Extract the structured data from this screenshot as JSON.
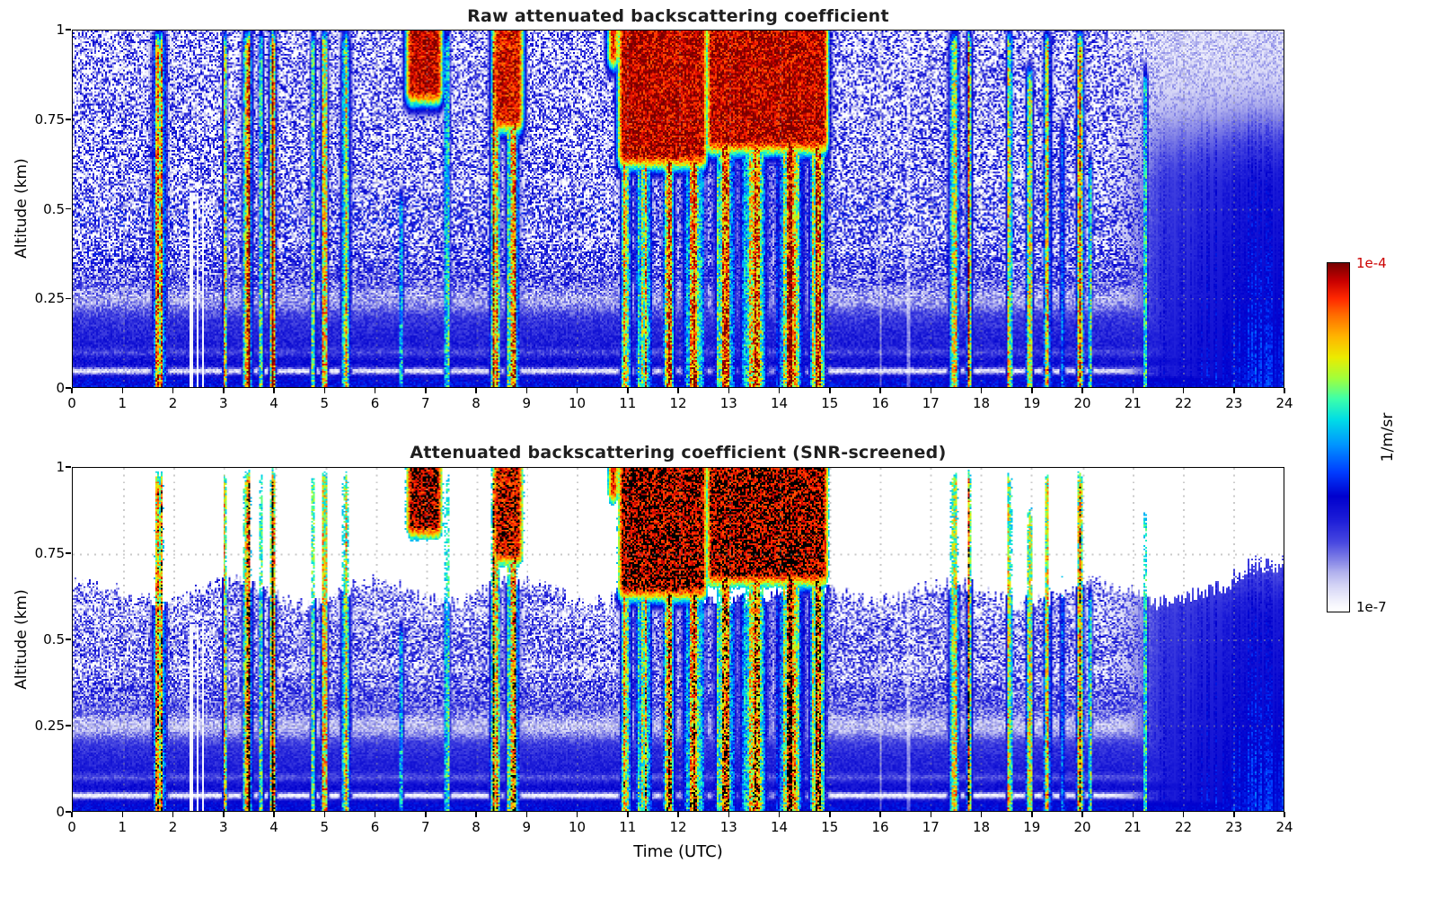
{
  "figure": {
    "background": "#ffffff"
  },
  "colorbar": {
    "top_label": "1e-4",
    "bottom_label": "1e-7",
    "units_label": "1/m/sr",
    "top_label_color": "#cc0000",
    "bottom_label_color": "#000000",
    "stops": [
      [
        0.0,
        255,
        255,
        255
      ],
      [
        0.03,
        240,
        240,
        252
      ],
      [
        0.07,
        214,
        214,
        246
      ],
      [
        0.11,
        178,
        178,
        238
      ],
      [
        0.15,
        128,
        128,
        230
      ],
      [
        0.2,
        70,
        70,
        224
      ],
      [
        0.26,
        30,
        30,
        216
      ],
      [
        0.33,
        0,
        0,
        205
      ],
      [
        0.4,
        0,
        60,
        255
      ],
      [
        0.48,
        0,
        150,
        255
      ],
      [
        0.55,
        0,
        220,
        230
      ],
      [
        0.61,
        60,
        255,
        170
      ],
      [
        0.67,
        160,
        255,
        60
      ],
      [
        0.73,
        235,
        235,
        0
      ],
      [
        0.79,
        255,
        180,
        0
      ],
      [
        0.85,
        255,
        110,
        0
      ],
      [
        0.9,
        255,
        40,
        0
      ],
      [
        0.95,
        200,
        0,
        0
      ],
      [
        1.0,
        120,
        0,
        0
      ]
    ]
  },
  "chart_data": [
    {
      "type": "heatmap",
      "title": "Raw attenuated backscattering coefficient",
      "xlabel": "",
      "ylabel": "Altitude (km)",
      "xlim": [
        0,
        24
      ],
      "ylim": [
        0,
        1
      ],
      "xticks": [
        0,
        1,
        2,
        3,
        4,
        5,
        6,
        7,
        8,
        9,
        10,
        11,
        12,
        13,
        14,
        15,
        16,
        17,
        18,
        19,
        20,
        21,
        22,
        23,
        24
      ],
      "yticks": [
        0,
        0.25,
        0.5,
        0.75,
        1
      ],
      "color_scale": {
        "type": "log",
        "min": "1e-7",
        "max": "1e-4",
        "units": "1/m/sr"
      },
      "grid": "dotted",
      "screening": null,
      "features": {
        "surface_layer": {
          "peak": 0.3,
          "scale_height_km": 0.4,
          "offset": 0.045
        },
        "pale_bands_km": [
          [
            0.047,
            0.01,
            0.85
          ],
          [
            0.25,
            0.035,
            0.45
          ],
          [
            0.42,
            0.03,
            0.3
          ],
          [
            0.58,
            0.025,
            0.25
          ],
          [
            0.1,
            0.012,
            0.25
          ]
        ],
        "noise": {
          "base_amp": 0.1,
          "aloft_amp": 0.4,
          "aloft_start_km": 0.18,
          "aloft_full_km": 0.45
        },
        "plumes": [
          [
            1.7,
            0.13,
            0.85,
            1.05
          ],
          [
            3.0,
            0.05,
            0.78,
            1.05
          ],
          [
            3.45,
            0.09,
            0.96,
            1.05
          ],
          [
            3.72,
            0.05,
            0.7,
            1.05
          ],
          [
            3.95,
            0.07,
            0.9,
            1.05
          ],
          [
            4.75,
            0.05,
            0.82,
            1.05
          ],
          [
            4.97,
            0.07,
            0.93,
            1.05
          ],
          [
            5.4,
            0.09,
            0.9,
            1.05
          ],
          [
            6.5,
            0.05,
            0.55,
            0.6
          ],
          [
            7.4,
            0.06,
            0.72,
            1.05
          ],
          [
            8.35,
            0.09,
            0.96,
            1.05
          ],
          [
            8.7,
            0.12,
            0.95,
            1.05
          ],
          [
            10.95,
            0.1,
            0.85,
            1.05
          ],
          [
            11.3,
            0.15,
            0.8,
            1.05
          ],
          [
            11.8,
            0.12,
            0.78,
            1.05
          ],
          [
            12.3,
            0.2,
            0.85,
            1.05
          ],
          [
            12.9,
            0.2,
            0.82,
            1.05
          ],
          [
            13.5,
            0.25,
            0.85,
            1.05
          ],
          [
            14.2,
            0.25,
            0.9,
            1.05
          ],
          [
            14.75,
            0.15,
            0.92,
            1.05
          ],
          [
            17.45,
            0.1,
            0.95,
            1.05
          ],
          [
            17.75,
            0.06,
            0.8,
            1.05
          ],
          [
            18.55,
            0.06,
            0.8,
            1.05
          ],
          [
            18.95,
            0.07,
            0.82,
            0.95
          ],
          [
            19.3,
            0.08,
            0.75,
            1.05
          ],
          [
            19.6,
            0.05,
            0.6,
            0.8
          ],
          [
            19.95,
            0.08,
            0.88,
            1.05
          ],
          [
            20.15,
            0.04,
            0.6,
            0.7
          ],
          [
            21.25,
            0.05,
            0.58,
            0.95
          ]
        ],
        "clouds": [
          [
            6.55,
            7.35,
            0.8,
            1.02,
            1.0
          ],
          [
            8.25,
            8.95,
            0.72,
            1.02,
            0.97
          ],
          [
            10.75,
            12.6,
            0.62,
            1.02,
            1.0
          ],
          [
            12.5,
            15.0,
            0.66,
            1.02,
            1.0
          ],
          [
            10.55,
            10.85,
            0.9,
            1.02,
            0.95
          ]
        ],
        "data_gaps": [
          [
            2.33,
            0.02,
            0.55,
            0.08
          ],
          [
            2.44,
            0.02,
            0.55,
            0.08
          ],
          [
            2.56,
            0.02,
            0.55,
            0.08
          ],
          [
            16.0,
            0.02,
            1.02,
            0.55
          ],
          [
            16.55,
            0.02,
            1.02,
            0.55
          ]
        ],
        "smooth_region": {
          "t_start": 20.3,
          "t_full": 21.8,
          "base": 0.4,
          "z_slope": -0.15
        }
      }
    },
    {
      "type": "heatmap",
      "title": "Attenuated backscattering coefficient (SNR-screened)",
      "xlabel": "Time (UTC)",
      "ylabel": "Altitude (km)",
      "xlim": [
        0,
        24
      ],
      "ylim": [
        0,
        1
      ],
      "xticks": [
        0,
        1,
        2,
        3,
        4,
        5,
        6,
        7,
        8,
        9,
        10,
        11,
        12,
        13,
        14,
        15,
        16,
        17,
        18,
        19,
        20,
        21,
        22,
        23,
        24
      ],
      "yticks": [
        0,
        0.25,
        0.5,
        0.75,
        1
      ],
      "color_scale": {
        "type": "log",
        "min": "1e-7",
        "max": "1e-4",
        "units": "1/m/sr"
      },
      "grid": "dotted",
      "screening": {
        "boundary_km": 0.64,
        "wiggle_km": 0.05,
        "min_keep": 0.5,
        "black_above": 0.965,
        "band_boost": 1.25,
        "noise_damp": 0.75
      },
      "features": "same_as_raw"
    }
  ]
}
